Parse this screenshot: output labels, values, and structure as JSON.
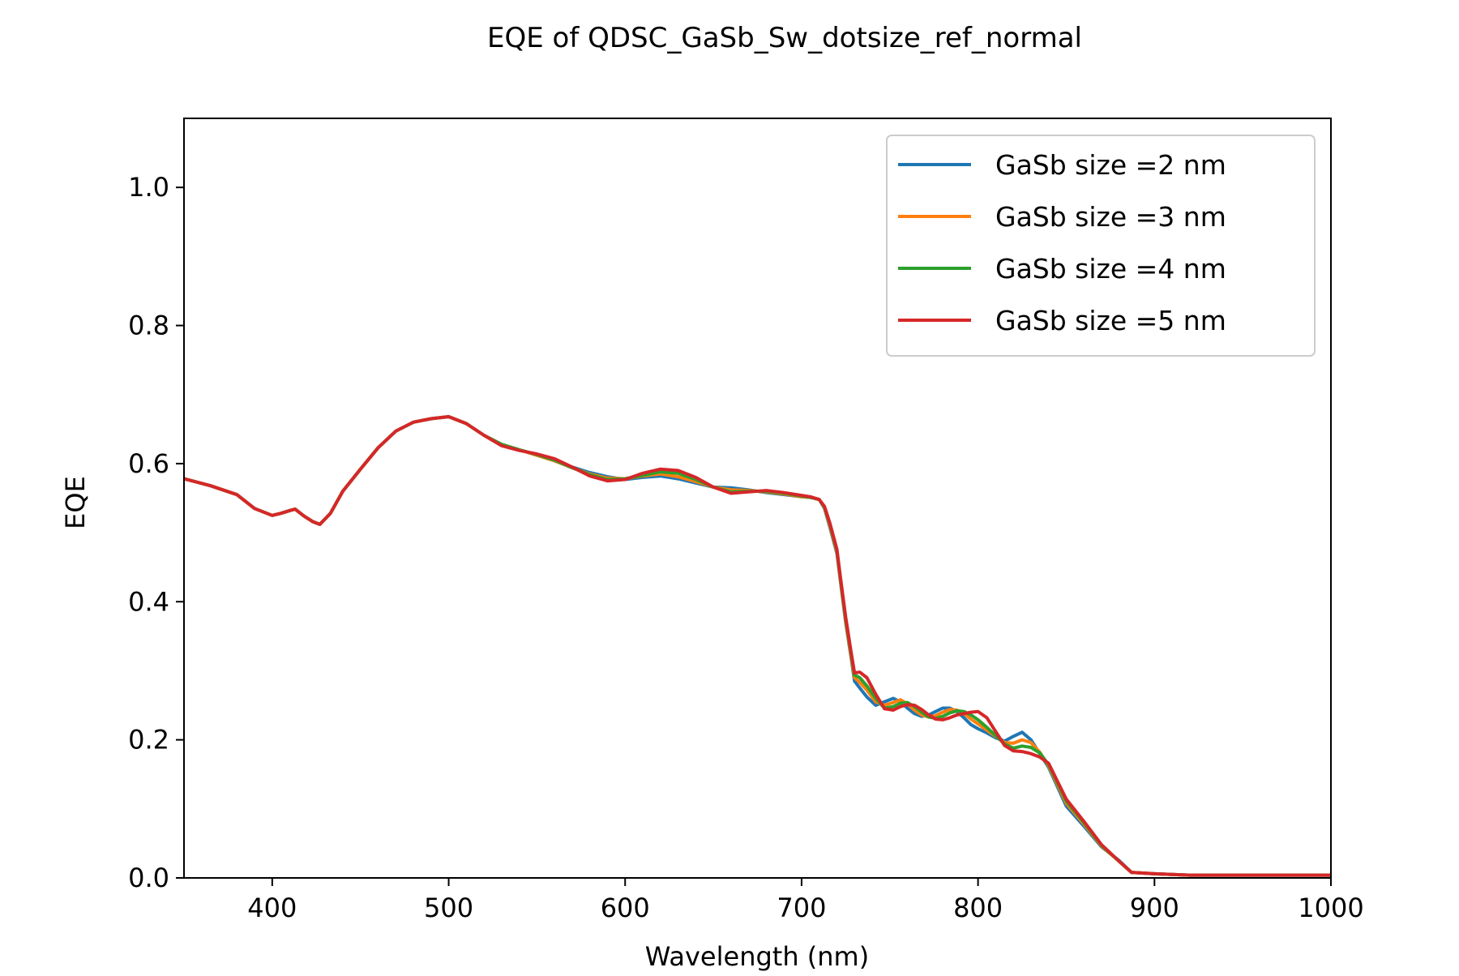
{
  "chart_data": {
    "type": "line",
    "title": "EQE of  QDSC_GaSb_Sw_dotsize_ref_normal",
    "xlabel": "Wavelength (nm)",
    "ylabel": "EQE",
    "xlim": [
      350,
      1000
    ],
    "ylim": [
      0,
      1.1
    ],
    "xticks": [
      400,
      500,
      600,
      700,
      800,
      900,
      1000
    ],
    "xtick_labels": [
      "400",
      "500",
      "600",
      "700",
      "800",
      "900",
      "1000"
    ],
    "yticks": [
      0.0,
      0.2,
      0.4,
      0.6,
      0.8,
      1.0
    ],
    "ytick_labels": [
      "0.0",
      "0.2",
      "0.4",
      "0.6",
      "0.8",
      "1.0"
    ],
    "grid": false,
    "legend_position": "top-right",
    "series": [
      {
        "name": "GaSb size =2 nm",
        "color": "#1f77b4",
        "x": [
          350,
          365,
          380,
          390,
          400,
          405,
          410,
          413,
          418,
          423,
          427,
          433,
          440,
          450,
          460,
          470,
          480,
          490,
          500,
          510,
          520,
          530,
          540,
          550,
          560,
          570,
          580,
          590,
          600,
          610,
          620,
          630,
          640,
          650,
          660,
          670,
          680,
          690,
          700,
          705,
          710,
          713,
          716,
          720,
          722,
          725,
          728,
          730,
          733,
          737,
          742,
          747,
          752,
          756,
          760,
          764,
          768,
          772,
          776,
          780,
          784,
          788,
          792,
          796,
          800,
          805,
          810,
          815,
          820,
          825,
          830,
          835,
          840,
          850,
          860,
          870,
          880,
          887,
          900,
          920,
          950,
          980,
          1000
        ],
        "y": [
          0.578,
          0.568,
          0.555,
          0.535,
          0.525,
          0.528,
          0.532,
          0.534,
          0.524,
          0.516,
          0.512,
          0.528,
          0.56,
          0.592,
          0.623,
          0.647,
          0.66,
          0.665,
          0.668,
          0.658,
          0.641,
          0.628,
          0.62,
          0.613,
          0.605,
          0.595,
          0.587,
          0.581,
          0.577,
          0.58,
          0.582,
          0.578,
          0.572,
          0.566,
          0.565,
          0.562,
          0.558,
          0.555,
          0.552,
          0.551,
          0.548,
          0.535,
          0.508,
          0.47,
          0.43,
          0.37,
          0.32,
          0.285,
          0.275,
          0.262,
          0.25,
          0.255,
          0.26,
          0.255,
          0.246,
          0.238,
          0.234,
          0.236,
          0.241,
          0.246,
          0.246,
          0.241,
          0.232,
          0.222,
          0.216,
          0.21,
          0.203,
          0.198,
          0.205,
          0.211,
          0.2,
          0.18,
          0.16,
          0.104,
          0.075,
          0.045,
          0.025,
          0.008,
          0.006,
          0.004,
          0.004,
          0.004,
          0.004
        ]
      },
      {
        "name": "GaSb size =3 nm",
        "color": "#ff7f0e",
        "x": [
          350,
          365,
          380,
          390,
          400,
          405,
          410,
          413,
          418,
          423,
          427,
          433,
          440,
          450,
          460,
          470,
          480,
          490,
          500,
          510,
          520,
          530,
          540,
          550,
          560,
          570,
          580,
          590,
          600,
          610,
          620,
          630,
          640,
          650,
          660,
          670,
          680,
          690,
          700,
          705,
          710,
          713,
          716,
          720,
          722,
          725,
          728,
          730,
          733,
          737,
          742,
          747,
          752,
          756,
          760,
          764,
          768,
          772,
          776,
          780,
          784,
          788,
          792,
          796,
          800,
          805,
          810,
          815,
          820,
          825,
          830,
          835,
          840,
          850,
          860,
          870,
          880,
          887,
          900,
          920,
          950,
          980,
          1000
        ],
        "y": [
          0.578,
          0.568,
          0.555,
          0.535,
          0.525,
          0.528,
          0.532,
          0.534,
          0.524,
          0.516,
          0.512,
          0.528,
          0.56,
          0.592,
          0.623,
          0.647,
          0.66,
          0.665,
          0.668,
          0.658,
          0.641,
          0.628,
          0.62,
          0.612,
          0.604,
          0.594,
          0.585,
          0.579,
          0.578,
          0.582,
          0.585,
          0.581,
          0.574,
          0.566,
          0.562,
          0.561,
          0.559,
          0.556,
          0.552,
          0.551,
          0.548,
          0.536,
          0.51,
          0.472,
          0.432,
          0.372,
          0.322,
          0.29,
          0.283,
          0.272,
          0.255,
          0.25,
          0.254,
          0.258,
          0.252,
          0.243,
          0.236,
          0.233,
          0.235,
          0.24,
          0.244,
          0.243,
          0.238,
          0.23,
          0.223,
          0.214,
          0.205,
          0.196,
          0.195,
          0.2,
          0.196,
          0.182,
          0.162,
          0.108,
          0.078,
          0.046,
          0.024,
          0.008,
          0.006,
          0.004,
          0.004,
          0.004,
          0.004
        ]
      },
      {
        "name": "GaSb size =4 nm",
        "color": "#2ca02c",
        "x": [
          350,
          365,
          380,
          390,
          400,
          405,
          410,
          413,
          418,
          423,
          427,
          433,
          440,
          450,
          460,
          470,
          480,
          490,
          500,
          510,
          520,
          530,
          540,
          550,
          560,
          570,
          580,
          590,
          600,
          610,
          620,
          630,
          640,
          650,
          660,
          670,
          680,
          690,
          700,
          705,
          710,
          713,
          716,
          720,
          722,
          725,
          728,
          730,
          733,
          737,
          742,
          747,
          752,
          756,
          760,
          764,
          768,
          772,
          776,
          780,
          784,
          788,
          792,
          796,
          800,
          805,
          810,
          815,
          820,
          825,
          830,
          835,
          840,
          850,
          860,
          870,
          880,
          887,
          900,
          920,
          950,
          980,
          1000
        ],
        "y": [
          0.578,
          0.568,
          0.555,
          0.535,
          0.525,
          0.528,
          0.532,
          0.534,
          0.524,
          0.516,
          0.512,
          0.528,
          0.56,
          0.592,
          0.623,
          0.647,
          0.66,
          0.665,
          0.668,
          0.658,
          0.641,
          0.628,
          0.62,
          0.613,
          0.605,
          0.594,
          0.584,
          0.577,
          0.578,
          0.583,
          0.588,
          0.586,
          0.577,
          0.566,
          0.559,
          0.56,
          0.56,
          0.557,
          0.553,
          0.551,
          0.548,
          0.537,
          0.512,
          0.474,
          0.434,
          0.375,
          0.325,
          0.294,
          0.29,
          0.278,
          0.26,
          0.246,
          0.248,
          0.253,
          0.254,
          0.248,
          0.24,
          0.233,
          0.231,
          0.234,
          0.239,
          0.242,
          0.241,
          0.236,
          0.229,
          0.218,
          0.206,
          0.194,
          0.188,
          0.191,
          0.189,
          0.181,
          0.164,
          0.111,
          0.08,
          0.047,
          0.024,
          0.008,
          0.006,
          0.004,
          0.004,
          0.004,
          0.004
        ]
      },
      {
        "name": "GaSb size =5 nm",
        "color": "#d62728",
        "x": [
          350,
          365,
          380,
          390,
          400,
          405,
          410,
          413,
          418,
          423,
          427,
          433,
          440,
          450,
          460,
          470,
          480,
          490,
          500,
          510,
          520,
          530,
          540,
          550,
          560,
          570,
          580,
          590,
          600,
          610,
          620,
          630,
          640,
          650,
          660,
          670,
          680,
          690,
          700,
          705,
          710,
          713,
          716,
          720,
          722,
          725,
          728,
          730,
          733,
          737,
          742,
          747,
          752,
          756,
          760,
          764,
          768,
          772,
          776,
          780,
          784,
          788,
          792,
          796,
          800,
          805,
          810,
          815,
          820,
          825,
          830,
          835,
          840,
          850,
          860,
          870,
          880,
          887,
          900,
          920,
          950,
          980,
          1000
        ],
        "y": [
          0.578,
          0.568,
          0.555,
          0.535,
          0.525,
          0.528,
          0.532,
          0.534,
          0.524,
          0.516,
          0.512,
          0.528,
          0.56,
          0.592,
          0.623,
          0.647,
          0.66,
          0.665,
          0.668,
          0.658,
          0.641,
          0.626,
          0.619,
          0.614,
          0.607,
          0.595,
          0.582,
          0.575,
          0.577,
          0.586,
          0.592,
          0.59,
          0.58,
          0.566,
          0.557,
          0.559,
          0.561,
          0.558,
          0.554,
          0.552,
          0.548,
          0.538,
          0.514,
          0.476,
          0.436,
          0.378,
          0.328,
          0.297,
          0.298,
          0.29,
          0.266,
          0.245,
          0.243,
          0.248,
          0.251,
          0.25,
          0.244,
          0.236,
          0.23,
          0.229,
          0.232,
          0.236,
          0.238,
          0.24,
          0.241,
          0.232,
          0.212,
          0.192,
          0.184,
          0.183,
          0.18,
          0.175,
          0.166,
          0.114,
          0.082,
          0.048,
          0.024,
          0.008,
          0.006,
          0.004,
          0.004,
          0.004,
          0.004
        ]
      }
    ]
  }
}
